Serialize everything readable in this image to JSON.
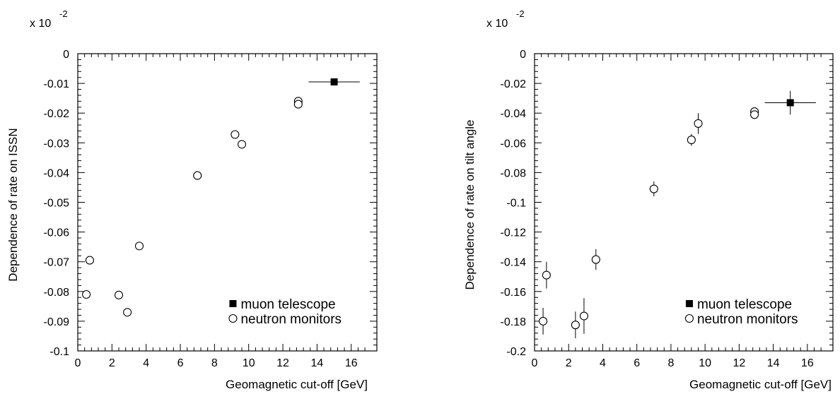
{
  "chart_data": [
    {
      "type": "scatter",
      "xlabel": "Geomagnetic cut-off [GeV]",
      "ylabel": "Dependence of rate on ISSN",
      "scale_prefix": "x 10",
      "scale_exponent": "-2",
      "xlim": [
        0,
        17.5
      ],
      "ylim": [
        -0.1,
        0
      ],
      "x_ticks": [
        "0",
        "2",
        "4",
        "6",
        "8",
        "10",
        "12",
        "14",
        "16"
      ],
      "y_ticks": [
        "0",
        "-0.01",
        "-0.02",
        "-0.03",
        "-0.04",
        "-0.05",
        "-0.06",
        "-0.07",
        "-0.08",
        "-0.09",
        "-0.1"
      ],
      "legend_position": "bottom-right",
      "series": [
        {
          "name": "muon telescope",
          "marker": "filled-square",
          "points": [
            {
              "x": 15.0,
              "y": -0.0095,
              "xerr": 1.5,
              "yerr": 0
            }
          ]
        },
        {
          "name": "neutron monitors",
          "marker": "open-circle",
          "points": [
            {
              "x": 0.5,
              "y": -0.081,
              "yerr": 0
            },
            {
              "x": 0.7,
              "y": -0.0695,
              "yerr": 0
            },
            {
              "x": 2.4,
              "y": -0.0812,
              "yerr": 0
            },
            {
              "x": 2.9,
              "y": -0.087,
              "yerr": 0
            },
            {
              "x": 3.6,
              "y": -0.0647,
              "yerr": 0
            },
            {
              "x": 7.0,
              "y": -0.041,
              "yerr": 0
            },
            {
              "x": 9.2,
              "y": -0.0272,
              "yerr": 0
            },
            {
              "x": 9.6,
              "y": -0.0305,
              "yerr": 0
            },
            {
              "x": 12.9,
              "y": -0.016,
              "yerr": 0
            },
            {
              "x": 12.9,
              "y": -0.017,
              "yerr": 0
            }
          ]
        }
      ]
    },
    {
      "type": "scatter",
      "xlabel": "Geomagnetic cut-off [GeV]",
      "ylabel": "Dependence of rate on tilt angle",
      "scale_prefix": "x 10",
      "scale_exponent": "-2",
      "xlim": [
        0,
        17.5
      ],
      "ylim": [
        -0.2,
        0
      ],
      "x_ticks": [
        "0",
        "2",
        "4",
        "6",
        "8",
        "10",
        "12",
        "14",
        "16"
      ],
      "y_ticks": [
        "0",
        "-0.02",
        "-0.04",
        "-0.06",
        "-0.08",
        "-0.1",
        "-0.12",
        "-0.14",
        "-0.16",
        "-0.18",
        "-0.2"
      ],
      "legend_position": "bottom-right",
      "series": [
        {
          "name": "muon telescope",
          "marker": "filled-square",
          "points": [
            {
              "x": 15.0,
              "y": -0.033,
              "xerr": 1.5,
              "yerr": 0.008
            }
          ]
        },
        {
          "name": "neutron monitors",
          "marker": "open-circle",
          "points": [
            {
              "x": 0.5,
              "y": -0.18,
              "yerr": 0.009
            },
            {
              "x": 0.7,
              "y": -0.149,
              "yerr": 0.009
            },
            {
              "x": 2.4,
              "y": -0.1825,
              "yerr": 0.009
            },
            {
              "x": 2.9,
              "y": -0.1765,
              "yerr": 0.012
            },
            {
              "x": 3.6,
              "y": -0.1385,
              "yerr": 0.007
            },
            {
              "x": 7.0,
              "y": -0.091,
              "yerr": 0.005
            },
            {
              "x": 9.2,
              "y": -0.058,
              "yerr": 0.004
            },
            {
              "x": 9.6,
              "y": -0.047,
              "yerr": 0.007
            },
            {
              "x": 12.9,
              "y": -0.039,
              "yerr": 0.002
            },
            {
              "x": 12.9,
              "y": -0.041,
              "yerr": 0.002
            }
          ]
        }
      ]
    }
  ]
}
